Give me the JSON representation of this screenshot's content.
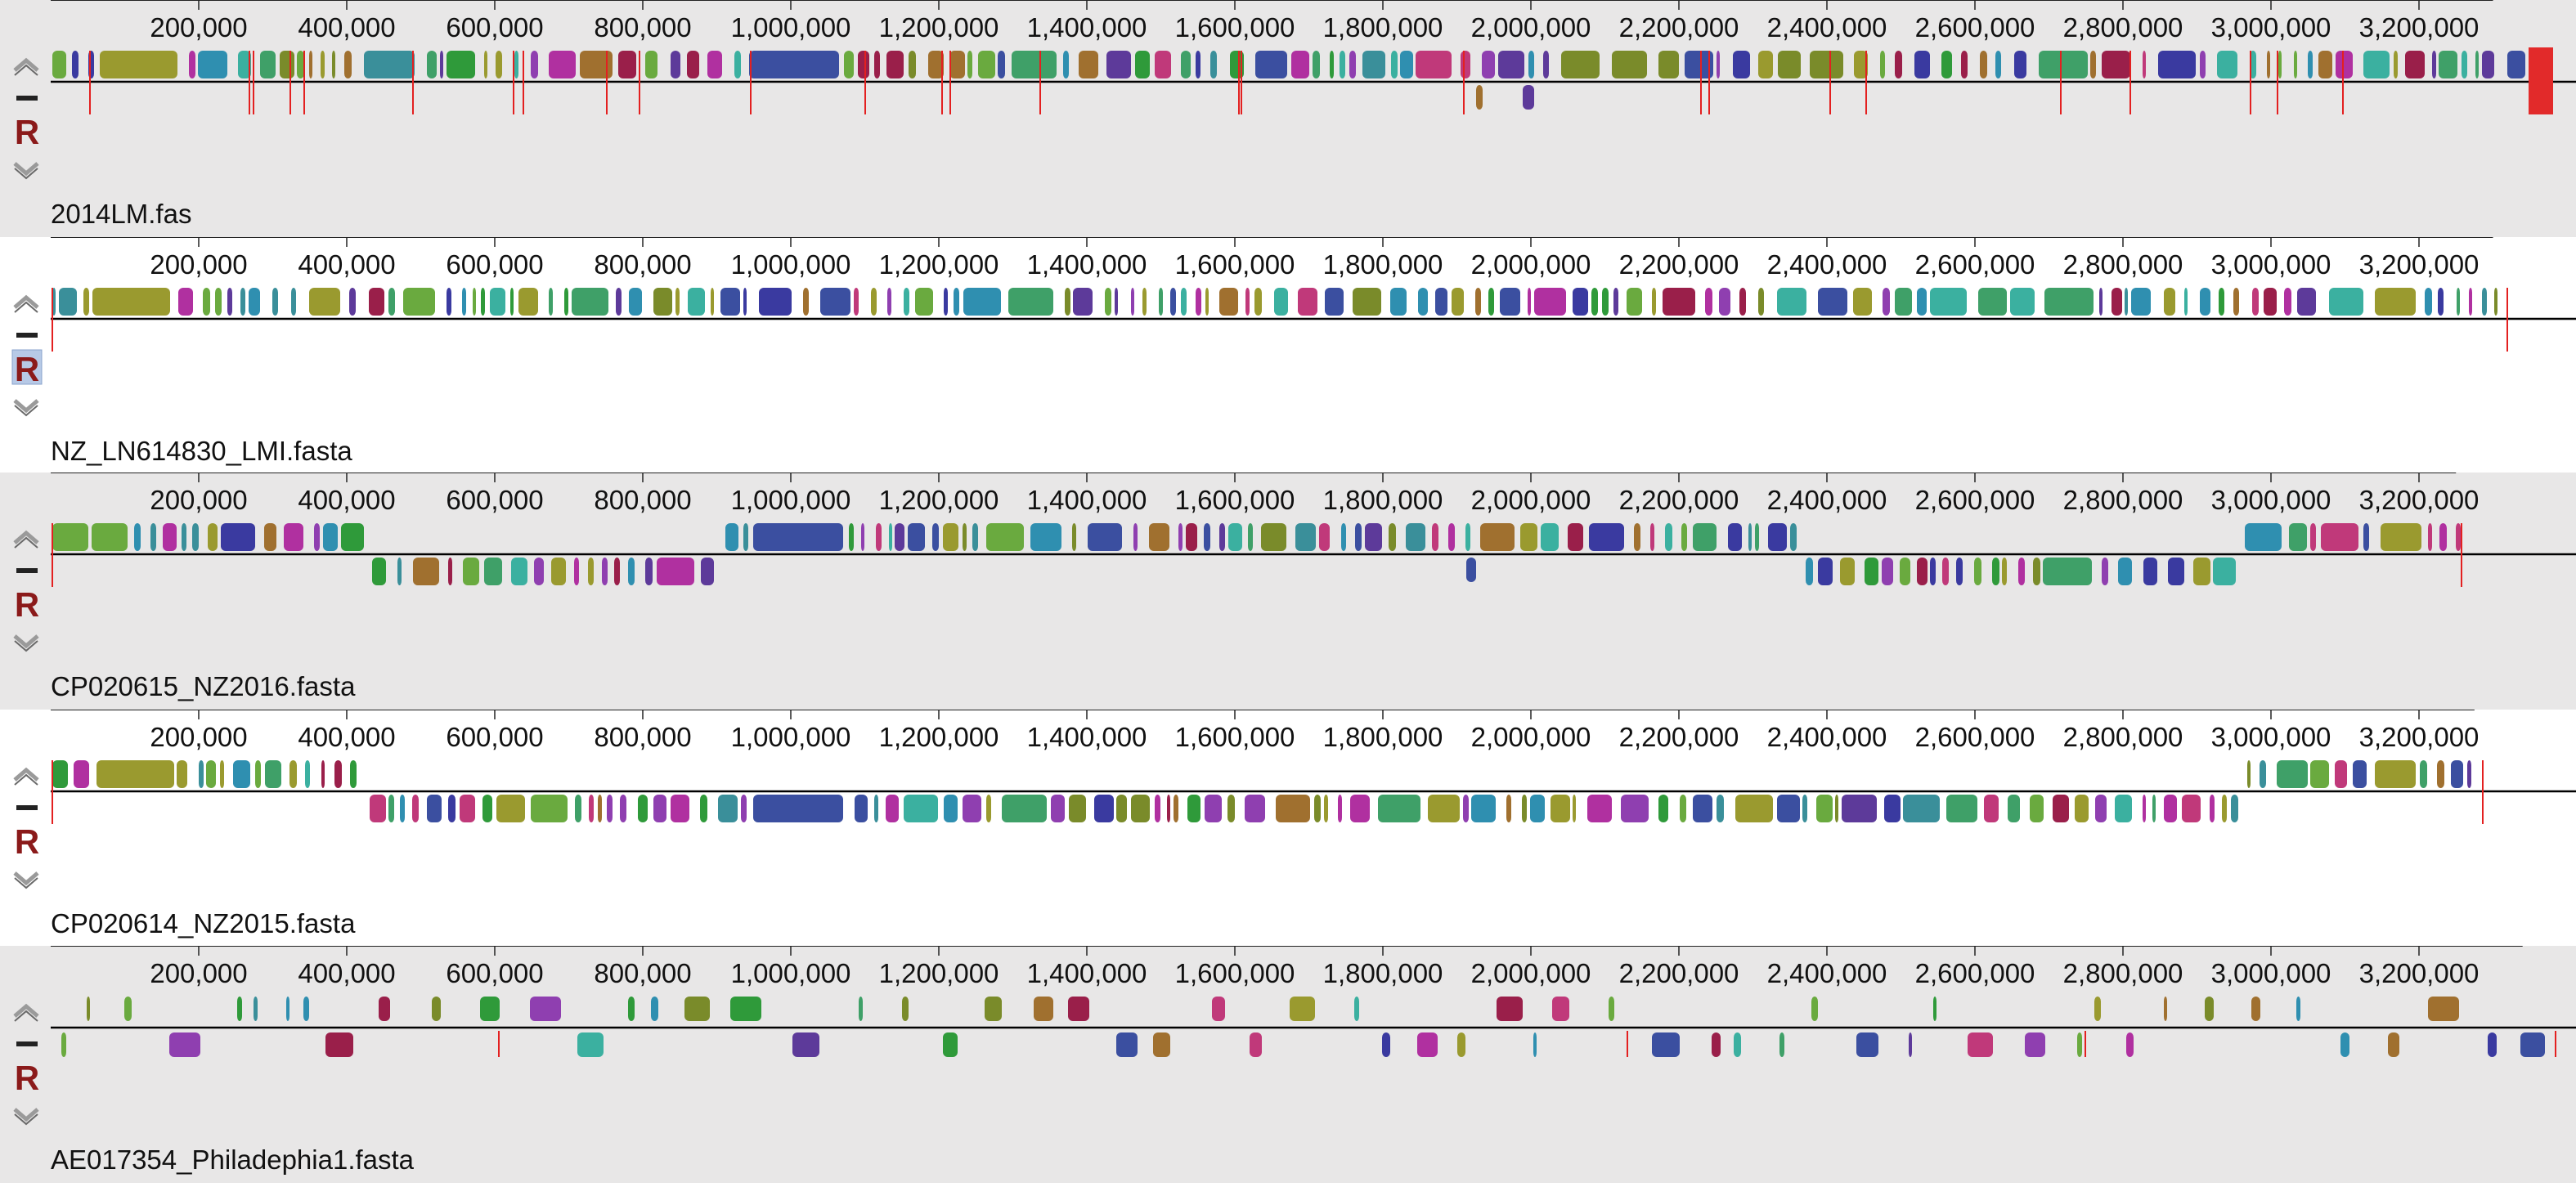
{
  "view": "Mauve alignment viewer",
  "colors": {
    "shaded_background": "#e8e7e7",
    "genome_axis": "#000000",
    "lcb_boundary": "#e32020",
    "control_arrows": "#999999",
    "reference_marker": "#8b1a1a"
  },
  "tick_labels": [
    "200,000",
    "400,000",
    "600,000",
    "800,000",
    "1,000,000",
    "1,200,000",
    "1,400,000",
    "1,600,000",
    "1,800,000",
    "2,000,000",
    "2,200,000",
    "2,400,000",
    "2,600,000",
    "2,800,000",
    "3,000,000",
    "3,200,000"
  ],
  "controls": {
    "move_up_icon": "chevron-up-icon",
    "hide_icon": "minus-icon",
    "reference_label": "R",
    "move_down_icon": "chevron-down-icon"
  },
  "palette": [
    "#9a9a2f",
    "#3b4fa0",
    "#7a8b2a",
    "#c0397a",
    "#3fa068",
    "#3a8f9a",
    "#5d3a9a",
    "#9a1f4a",
    "#2f9a3a",
    "#3bb0a0",
    "#b030a0",
    "#a0702f",
    "#3a3aa0",
    "#6aaa3f",
    "#2f8fb0",
    "#8f3fb0"
  ],
  "panels": [
    {
      "name": "2014LM.fas",
      "background": "shaded",
      "reference_highlighted": false,
      "genome_length": 3300000,
      "pattern": "1",
      "end_block": true
    },
    {
      "name": "NZ_LN614830_LMI.fasta",
      "background": "white",
      "reference_highlighted": true,
      "genome_length": 3300000,
      "pattern": "2",
      "end_block": false
    },
    {
      "name": "CP020615_NZ2016.fasta",
      "background": "shaded",
      "reference_highlighted": false,
      "genome_length": 3250000,
      "pattern": "3",
      "end_block": false
    },
    {
      "name": "CP020614_NZ2015.fasta",
      "background": "white",
      "reference_highlighted": false,
      "genome_length": 3275000,
      "pattern": "4",
      "end_block": false
    },
    {
      "name": "AE017354_Philadephia1.fasta",
      "background": "shaded",
      "reference_highlighted": false,
      "genome_length": 3340000,
      "pattern": "5",
      "end_block": false
    }
  ]
}
